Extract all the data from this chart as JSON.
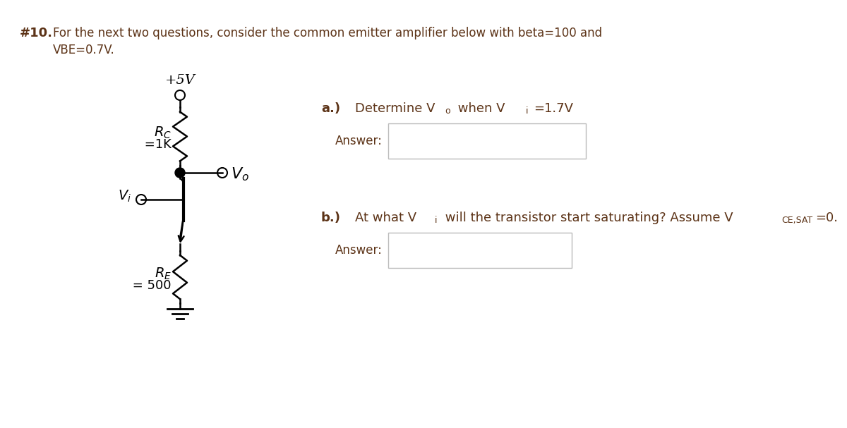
{
  "background_color": "#ffffff",
  "text_color": "#5C3317",
  "line_color": "#000000",
  "title_number": "#10.",
  "title_line1": "For the next two questions, consider the common emitter amplifier below with beta=100 and",
  "title_line2": "VBE=0.7V.",
  "vcc_label": "+5V",
  "rc_label_math": "$R_C$",
  "rc_label_val": " =1K",
  "re_label_math": "$R_E$",
  "re_label_val": " = 500",
  "vi_label": "$V_i$",
  "vo_label": "$V_o$",
  "q_a_label": "a.)",
  "q_a_text1": "Determine V",
  "q_a_sub_o": "o",
  "q_a_text2": " when V",
  "q_a_sub_i": "i",
  "q_a_text3": "=1.7V",
  "q_a_answer": "Answer:",
  "q_b_label": "b.)",
  "q_b_text1": "At what V",
  "q_b_sub_i": "i",
  "q_b_text2": " will the transistor start saturating? Assume V",
  "q_b_sub_ce": "CE,SAT",
  "q_b_text3": "=0.",
  "q_b_answer": "Answer:",
  "box_color": "#bbbbbb",
  "figw": 12.0,
  "figh": 6.07,
  "dpi": 100
}
